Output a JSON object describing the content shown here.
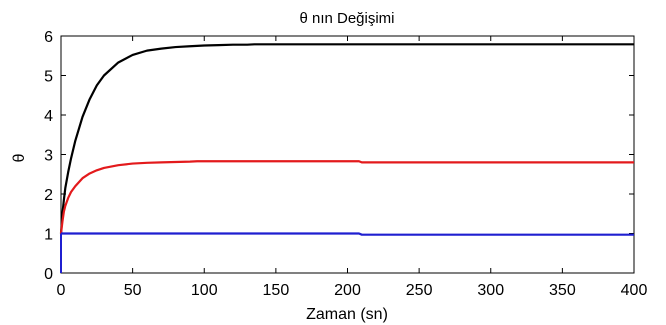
{
  "chart_data": {
    "type": "line",
    "title": "θ nın Değişimi",
    "xlabel": "Zaman (sn)",
    "ylabel": "θ",
    "xlim": [
      0,
      400
    ],
    "ylim": [
      0,
      6
    ],
    "xticks": [
      0,
      50,
      100,
      150,
      200,
      250,
      300,
      350,
      400
    ],
    "yticks": [
      0,
      1,
      2,
      3,
      4,
      5,
      6
    ],
    "grid": false,
    "legend": "none",
    "series": [
      {
        "color": "#000000",
        "x": [
          0,
          1,
          2,
          3,
          5,
          7,
          10,
          15,
          20,
          25,
          30,
          40,
          50,
          60,
          70,
          80,
          90,
          100,
          110,
          120,
          130,
          135,
          150,
          200,
          210,
          250,
          300,
          350,
          400
        ],
        "y": [
          1.0,
          1.5,
          1.85,
          2.15,
          2.55,
          2.9,
          3.35,
          3.95,
          4.4,
          4.75,
          5.0,
          5.33,
          5.52,
          5.63,
          5.68,
          5.72,
          5.74,
          5.76,
          5.77,
          5.78,
          5.78,
          5.79,
          5.79,
          5.79,
          5.79,
          5.79,
          5.79,
          5.79,
          5.79
        ]
      },
      {
        "color": "#e31a1c",
        "x": [
          0,
          1,
          2,
          3,
          5,
          7,
          10,
          15,
          20,
          25,
          30,
          40,
          50,
          60,
          70,
          80,
          90,
          95,
          150,
          208,
          210,
          250,
          300,
          350,
          400
        ],
        "y": [
          1.0,
          1.3,
          1.55,
          1.7,
          1.9,
          2.05,
          2.2,
          2.4,
          2.52,
          2.6,
          2.66,
          2.73,
          2.77,
          2.79,
          2.8,
          2.81,
          2.82,
          2.83,
          2.83,
          2.83,
          2.8,
          2.8,
          2.8,
          2.8,
          2.8
        ]
      },
      {
        "color": "#1f1fd0",
        "x": [
          0,
          50,
          100,
          150,
          208,
          210,
          250,
          300,
          350,
          400
        ],
        "y": [
          1.0,
          1.0,
          1.0,
          1.0,
          1.0,
          0.97,
          0.97,
          0.97,
          0.97,
          0.97
        ]
      }
    ]
  }
}
